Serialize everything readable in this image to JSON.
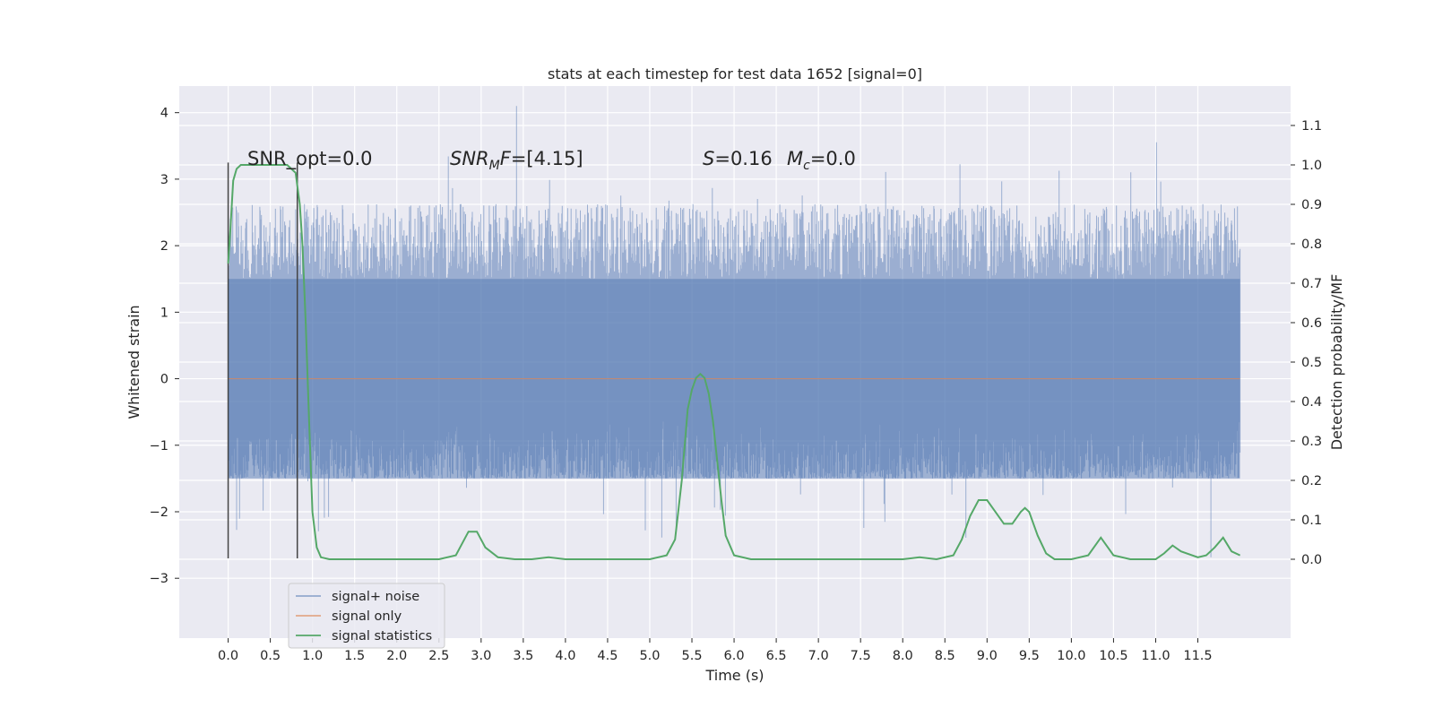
{
  "chart_data": {
    "type": "line",
    "title": "stats at each timestep for test data 1652 [signal=0]",
    "xlabel": "Time (s)",
    "ylabel_left": "Whitened strain",
    "ylabel_right": "Detection probability/MF",
    "xlim": [
      -0.58,
      12.6
    ],
    "ylim_left": [
      -3.9,
      4.4
    ],
    "ylim_right": [
      -0.2,
      1.2
    ],
    "x_ticks": [
      "0.0",
      "0.5",
      "1.0",
      "1.5",
      "2.0",
      "2.5",
      "3.0",
      "3.5",
      "4.0",
      "4.5",
      "5.0",
      "5.5",
      "6.0",
      "6.5",
      "7.0",
      "7.5",
      "8.0",
      "8.5",
      "9.0",
      "9.5",
      "10.0",
      "10.5",
      "11.0",
      "11.5"
    ],
    "y_ticks_left": [
      "−3",
      "−2",
      "−1",
      "0",
      "1",
      "2",
      "3",
      "4"
    ],
    "y_ticks_right": [
      "0.0",
      "0.1",
      "0.2",
      "0.3",
      "0.4",
      "0.5",
      "0.6",
      "0.7",
      "0.8",
      "0.9",
      "1.0",
      "1.1"
    ],
    "grid": true,
    "legend_placement": "lower-left",
    "annotations": {
      "snr_opt": "SNR_opt=0.0",
      "snr_mf_label": "SNR",
      "snr_mf_sub": "M",
      "snr_mf_rest": "F=[4.15]",
      "s_label": "S",
      "s_value": "=0.16",
      "mc_label": "M",
      "mc_sub": "c",
      "mc_value": "=0.0"
    },
    "window_markers": [
      0.0,
      0.82
    ],
    "series": [
      {
        "name": "signal+ noise",
        "axis": "left",
        "color": "#4c72b0",
        "x_range": [
          0.0,
          12.0
        ],
        "envelope_upper_typical": 2.4,
        "envelope_lower_typical": -2.2,
        "dense_band": [
          -1.5,
          1.5
        ],
        "max": 4.1,
        "min": -3.45
      },
      {
        "name": "signal only",
        "axis": "left",
        "color": "#dd8452",
        "x": [
          0.0,
          12.0
        ],
        "y": [
          0.0,
          0.0
        ]
      },
      {
        "name": "signal statistics",
        "axis": "right",
        "color": "#55a868",
        "x": [
          0.0,
          0.03,
          0.06,
          0.1,
          0.15,
          0.2,
          0.3,
          0.4,
          0.5,
          0.6,
          0.7,
          0.75,
          0.8,
          0.85,
          0.88,
          0.92,
          0.96,
          1.0,
          1.05,
          1.1,
          1.2,
          1.5,
          2.0,
          2.5,
          2.7,
          2.85,
          2.95,
          3.05,
          3.2,
          3.4,
          3.6,
          3.8,
          4.0,
          4.5,
          5.0,
          5.2,
          5.3,
          5.38,
          5.45,
          5.5,
          5.55,
          5.6,
          5.65,
          5.7,
          5.75,
          5.8,
          5.85,
          5.9,
          6.0,
          6.2,
          6.5,
          7.0,
          7.5,
          8.0,
          8.2,
          8.4,
          8.6,
          8.7,
          8.8,
          8.9,
          9.0,
          9.1,
          9.2,
          9.3,
          9.4,
          9.45,
          9.5,
          9.6,
          9.7,
          9.8,
          10.0,
          10.2,
          10.35,
          10.5,
          10.7,
          11.0,
          11.1,
          11.2,
          11.3,
          11.5,
          11.6,
          11.7,
          11.8,
          11.9,
          12.0
        ],
        "y": [
          0.75,
          0.85,
          0.96,
          0.99,
          1.0,
          1.0,
          1.0,
          1.0,
          1.0,
          1.0,
          1.0,
          0.99,
          0.98,
          0.9,
          0.8,
          0.6,
          0.35,
          0.12,
          0.03,
          0.005,
          0.0,
          0.0,
          0.0,
          0.0,
          0.01,
          0.07,
          0.07,
          0.03,
          0.005,
          0.0,
          0.0,
          0.005,
          0.0,
          0.0,
          0.0,
          0.01,
          0.05,
          0.2,
          0.38,
          0.43,
          0.46,
          0.47,
          0.46,
          0.42,
          0.35,
          0.25,
          0.15,
          0.06,
          0.01,
          0.0,
          0.0,
          0.0,
          0.0,
          0.0,
          0.005,
          0.0,
          0.01,
          0.05,
          0.11,
          0.15,
          0.15,
          0.12,
          0.09,
          0.09,
          0.12,
          0.13,
          0.12,
          0.06,
          0.015,
          0.0,
          0.0,
          0.01,
          0.055,
          0.01,
          0.0,
          0.0,
          0.015,
          0.035,
          0.02,
          0.005,
          0.01,
          0.03,
          0.055,
          0.02,
          0.01
        ]
      }
    ]
  }
}
